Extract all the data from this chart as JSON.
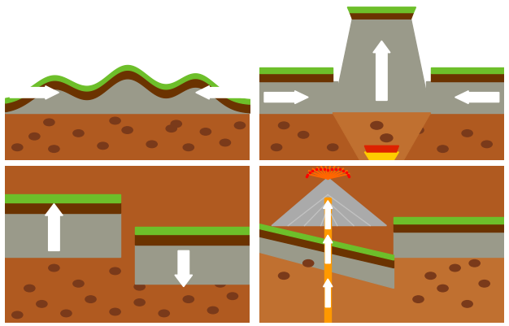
{
  "colors": {
    "grass": "#6DBF2A",
    "dark_soil": "#6B3300",
    "gray_rock": "#9A9A8A",
    "gray_rock2": "#ABABAB",
    "brown_lower": "#B05A20",
    "brown_mid": "#C07030",
    "brown_dark": "#7A3A1A",
    "brown_spot": "#8B4513",
    "orange_magma": "#FF8800",
    "yellow_magma": "#FFCC00",
    "red_hot": "#DD2200",
    "white": "#FFFFFF",
    "background": "#FFFFFF",
    "lava_channel": "#FF9900",
    "volcano_gray": "#AAAAAA",
    "volcano_stripe": "#C8C8C8",
    "eruption_orange": "#FF6600"
  },
  "figsize": [
    6.26,
    4.01
  ],
  "dpi": 100
}
